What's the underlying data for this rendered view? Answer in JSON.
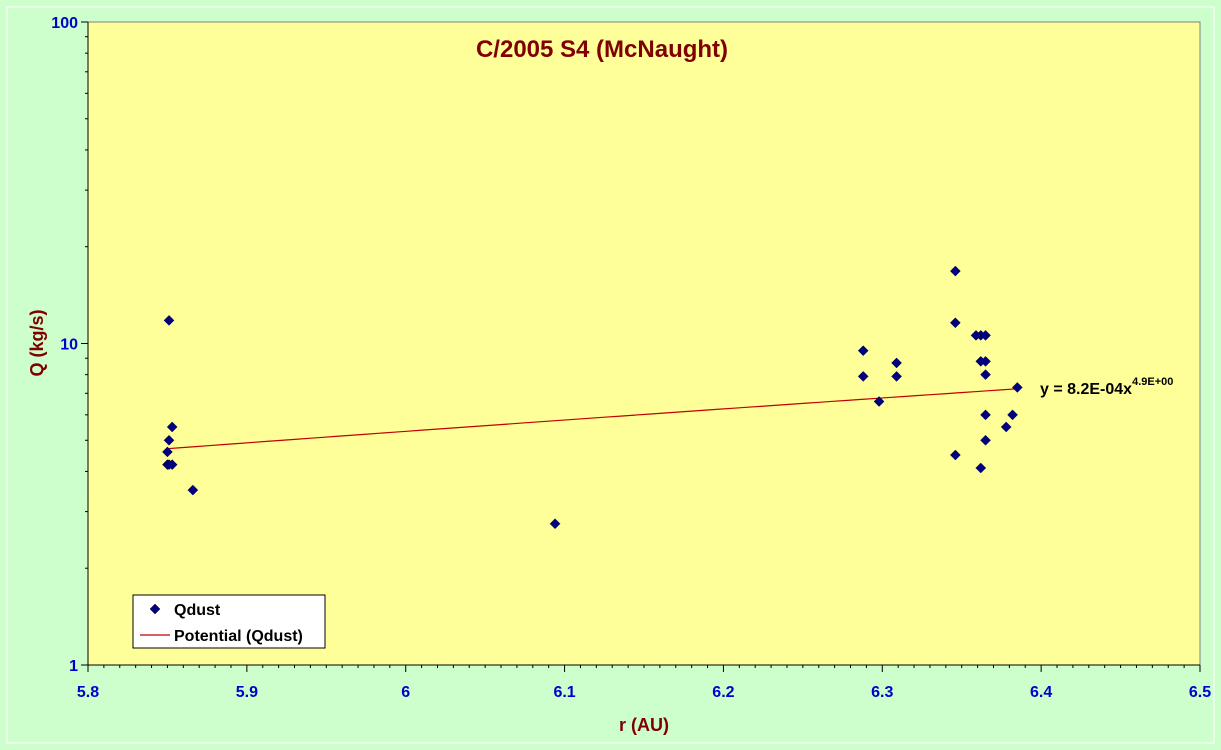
{
  "chart_data": {
    "type": "scatter",
    "title": "C/2005 S4 (McNaught)",
    "xlabel": "r (AU)",
    "ylabel": "Q (kg/s)",
    "xlim": [
      5.8,
      6.5
    ],
    "ylim": [
      1,
      100
    ],
    "y_scale": "log",
    "x_ticks": [
      "5.8",
      "5.9",
      "6",
      "6.1",
      "6.2",
      "6.3",
      "6.4",
      "6.5"
    ],
    "y_ticks": [
      "1",
      "10",
      "100"
    ],
    "legend_position": "bottom-left",
    "colors": {
      "background": "#ccffcc",
      "plot_area": "#ffff99",
      "marker": "#000080",
      "trend": "#c00000",
      "title": "#800000",
      "ticks": "#0000cc"
    },
    "series": [
      {
        "name": "Qdust",
        "marker": "diamond",
        "x": [
          5.851,
          5.853,
          5.851,
          5.85,
          5.85,
          5.851,
          5.853,
          5.866,
          6.094,
          6.288,
          6.288,
          6.298,
          6.309,
          6.309,
          6.346,
          6.346,
          6.346,
          6.359,
          6.362,
          6.365,
          6.362,
          6.365,
          6.365,
          6.385,
          6.365,
          6.382,
          6.365,
          6.378,
          6.362
        ],
        "y": [
          11.8,
          5.5,
          5.0,
          4.6,
          4.2,
          4.2,
          4.2,
          3.5,
          2.75,
          9.5,
          7.9,
          6.6,
          8.7,
          7.9,
          16.8,
          11.6,
          4.5,
          10.6,
          10.6,
          10.6,
          8.8,
          8.8,
          8.0,
          7.3,
          6.0,
          6.0,
          5.0,
          5.5,
          4.1
        ]
      }
    ],
    "trendline": {
      "name": "Potential (Qdust)",
      "type": "power",
      "coefficient": 0.00082,
      "exponent": 4.9,
      "x_range": [
        5.85,
        6.385
      ],
      "equation_main": "y = 8.2E-04x",
      "equation_sup": "4.9E+00"
    }
  }
}
